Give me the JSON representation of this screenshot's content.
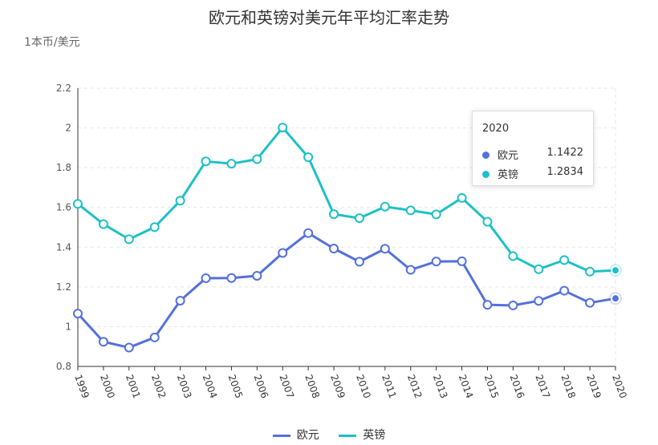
{
  "chart_data": {
    "type": "line",
    "title": "欧元和英镑对美元年平均汇率走势",
    "ylabel": "1本币/美元",
    "xlabel": "",
    "ylim": [
      0.8,
      2.2
    ],
    "yticks": [
      "0.8",
      "1",
      "1.2",
      "1.4",
      "1.6",
      "1.8",
      "2",
      "2.2"
    ],
    "grid": true,
    "legend": "bottom",
    "categories": [
      "1999",
      "2000",
      "2001",
      "2002",
      "2003",
      "2004",
      "2005",
      "2006",
      "2007",
      "2008",
      "2009",
      "2010",
      "2011",
      "2012",
      "2013",
      "2014",
      "2015",
      "2016",
      "2017",
      "2018",
      "2019",
      "2020"
    ],
    "series": [
      {
        "name": "欧元",
        "color": "#5470dc",
        "values": [
          1.066,
          0.924,
          0.895,
          0.946,
          1.131,
          1.244,
          1.245,
          1.256,
          1.371,
          1.471,
          1.393,
          1.327,
          1.392,
          1.286,
          1.328,
          1.329,
          1.11,
          1.107,
          1.13,
          1.181,
          1.12,
          1.1422
        ]
      },
      {
        "name": "英镑",
        "color": "#1dc0c6",
        "values": [
          1.618,
          1.516,
          1.44,
          1.501,
          1.634,
          1.832,
          1.82,
          1.843,
          2.002,
          1.853,
          1.566,
          1.546,
          1.604,
          1.585,
          1.565,
          1.648,
          1.528,
          1.355,
          1.289,
          1.335,
          1.277,
          1.2834
        ]
      }
    ],
    "tooltip": {
      "title": "2020",
      "rows": [
        {
          "name": "欧元",
          "value": "1.1422"
        },
        {
          "name": "英镑",
          "value": "1.2834"
        }
      ]
    }
  }
}
